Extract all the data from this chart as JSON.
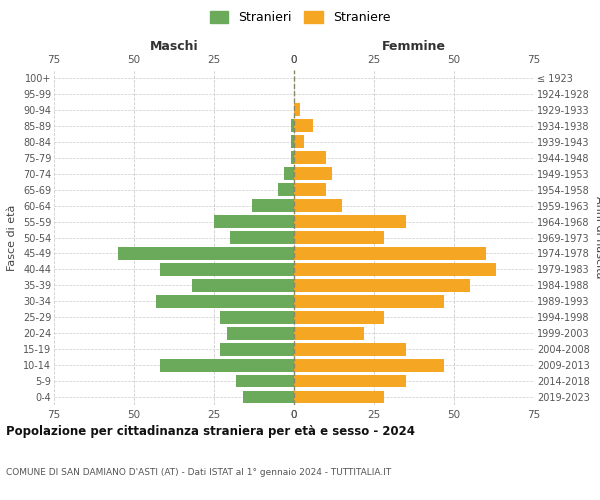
{
  "age_groups": [
    "0-4",
    "5-9",
    "10-14",
    "15-19",
    "20-24",
    "25-29",
    "30-34",
    "35-39",
    "40-44",
    "45-49",
    "50-54",
    "55-59",
    "60-64",
    "65-69",
    "70-74",
    "75-79",
    "80-84",
    "85-89",
    "90-94",
    "95-99",
    "100+"
  ],
  "birth_years": [
    "2019-2023",
    "2014-2018",
    "2009-2013",
    "2004-2008",
    "1999-2003",
    "1994-1998",
    "1989-1993",
    "1984-1988",
    "1979-1983",
    "1974-1978",
    "1969-1973",
    "1964-1968",
    "1959-1963",
    "1954-1958",
    "1949-1953",
    "1944-1948",
    "1939-1943",
    "1934-1938",
    "1929-1933",
    "1924-1928",
    "≤ 1923"
  ],
  "males": [
    16,
    18,
    42,
    23,
    21,
    23,
    43,
    32,
    42,
    55,
    20,
    25,
    13,
    5,
    3,
    1,
    1,
    1,
    0,
    0,
    0
  ],
  "females": [
    28,
    35,
    47,
    35,
    22,
    28,
    47,
    55,
    63,
    60,
    28,
    35,
    15,
    10,
    12,
    10,
    3,
    6,
    2,
    0,
    0
  ],
  "male_color": "#6aaa5a",
  "female_color": "#f5a623",
  "male_label": "Stranieri",
  "female_label": "Straniere",
  "title": "Popolazione per cittadinanza straniera per età e sesso - 2024",
  "subtitle": "COMUNE DI SAN DAMIANO D'ASTI (AT) - Dati ISTAT al 1° gennaio 2024 - TUTTITALIA.IT",
  "xlabel_left": "Maschi",
  "xlabel_right": "Femmine",
  "ylabel_left": "Fasce di età",
  "ylabel_right": "Anni di nascita",
  "xlim": 75,
  "background_color": "#ffffff",
  "grid_color": "#cccccc"
}
